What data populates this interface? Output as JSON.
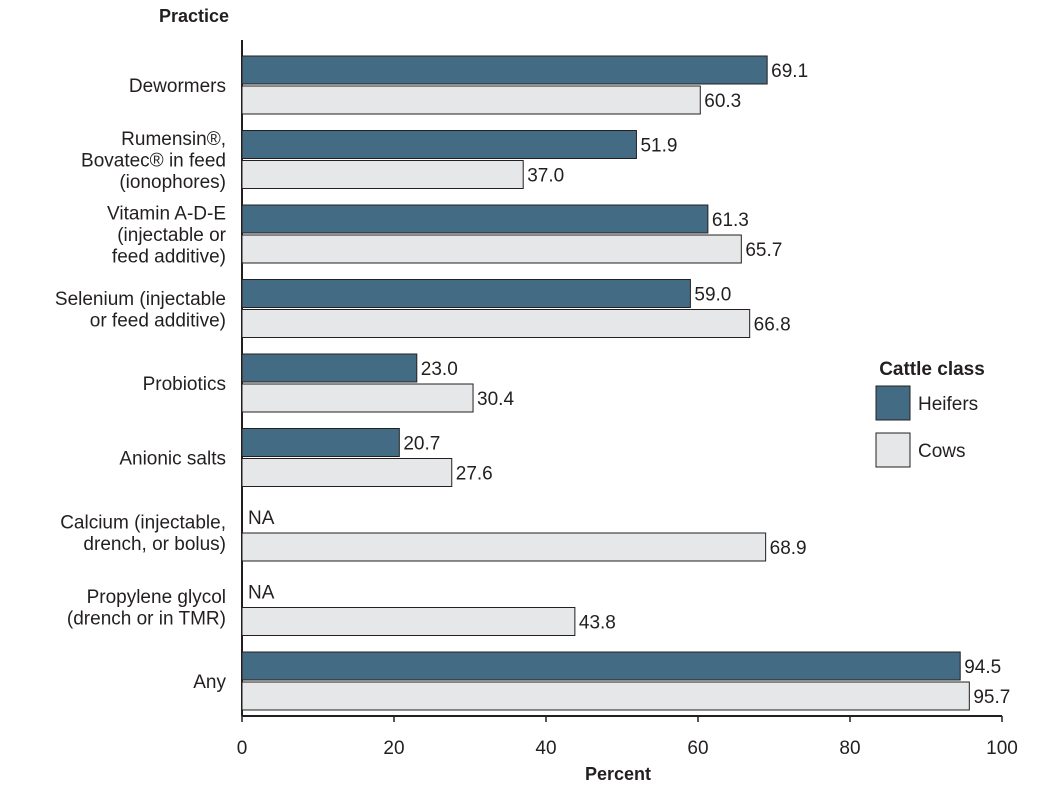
{
  "chart_data": {
    "type": "bar",
    "orientation": "horizontal",
    "ylabel": "Practice",
    "xlabel": "Percent",
    "xlim": [
      0,
      100
    ],
    "xticks": [
      0,
      20,
      40,
      60,
      80,
      100
    ],
    "categories": [
      [
        "Dewormers"
      ],
      [
        "Rumensin®,",
        "Bovatec® in feed",
        "(ionophores)"
      ],
      [
        "Vitamin A-D-E",
        "(injectable or",
        "feed additive)"
      ],
      [
        "Selenium (injectable",
        "or feed additive)"
      ],
      [
        "Probiotics"
      ],
      [
        "Anionic salts"
      ],
      [
        "Calcium (injectable,",
        "drench, or bolus)"
      ],
      [
        "Propylene glycol",
        "(drench or in TMR)"
      ],
      [
        "Any"
      ]
    ],
    "series": [
      {
        "name": "Heifers",
        "color": "#436c84",
        "values": [
          69.1,
          51.9,
          61.3,
          59.0,
          23.0,
          20.7,
          null,
          null,
          94.5
        ],
        "labels": [
          "69.1",
          "51.9",
          "61.3",
          "59.0",
          "23.0",
          "20.7",
          "NA",
          "NA",
          "94.5"
        ]
      },
      {
        "name": "Cows",
        "color": "#e6e7e8",
        "values": [
          60.3,
          37.0,
          65.7,
          66.8,
          30.4,
          27.6,
          68.9,
          43.8,
          95.7
        ],
        "labels": [
          "60.3",
          "37.0",
          "65.7",
          "66.8",
          "30.4",
          "27.6",
          "68.9",
          "43.8",
          "95.7"
        ]
      }
    ],
    "legend": {
      "title": "Cattle class",
      "position": "right"
    },
    "grid": false
  }
}
